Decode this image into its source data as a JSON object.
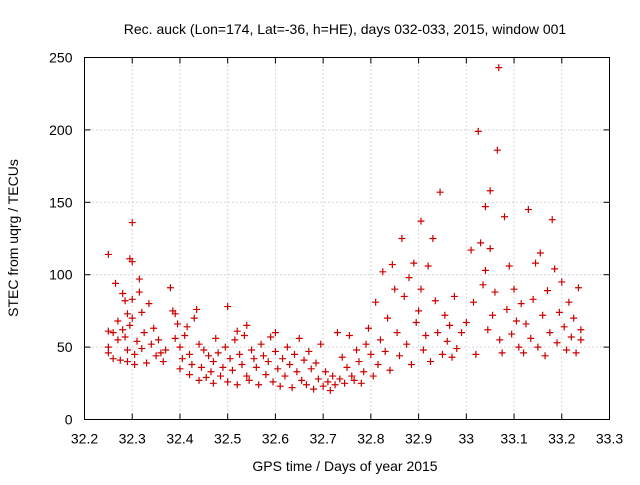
{
  "chart_data": {
    "type": "scatter",
    "title": "Rec. auck (Lon=174, Lat=-36, h=HE), days 032-033, 2015, window 001",
    "xlabel": "GPS time / Days of year 2015",
    "ylabel": "STEC from uqrg / TECUs",
    "xlim": [
      32.2,
      33.3
    ],
    "ylim": [
      0,
      250
    ],
    "x_ticks": [
      "32.2",
      "32.3",
      "32.4",
      "32.5",
      "32.6",
      "32.7",
      "32.8",
      "32.9",
      "33",
      "33.1",
      "33.2",
      "33.3"
    ],
    "y_ticks": [
      "0",
      "50",
      "100",
      "150",
      "200",
      "250"
    ],
    "grid": true,
    "marker": "+",
    "color": "#cc0000",
    "series": [
      {
        "points": [
          [
            32.25,
            114
          ],
          [
            32.25,
            61
          ],
          [
            32.25,
            50
          ],
          [
            32.25,
            46
          ],
          [
            32.26,
            60
          ],
          [
            32.26,
            42
          ],
          [
            32.265,
            94
          ],
          [
            32.27,
            68
          ],
          [
            32.27,
            55
          ],
          [
            32.275,
            41
          ],
          [
            32.28,
            87
          ],
          [
            32.28,
            62
          ],
          [
            32.285,
            82
          ],
          [
            32.285,
            57
          ],
          [
            32.29,
            73
          ],
          [
            32.29,
            48
          ],
          [
            32.29,
            40
          ],
          [
            32.295,
            111
          ],
          [
            32.295,
            65
          ],
          [
            32.3,
            109
          ],
          [
            32.3,
            136
          ],
          [
            32.3,
            83
          ],
          [
            32.3,
            70
          ],
          [
            32.305,
            45
          ],
          [
            32.305,
            38
          ],
          [
            32.31,
            54
          ],
          [
            32.315,
            97
          ],
          [
            32.315,
            88
          ],
          [
            32.32,
            74
          ],
          [
            32.32,
            49
          ],
          [
            32.325,
            60
          ],
          [
            32.33,
            39
          ],
          [
            32.335,
            80
          ],
          [
            32.34,
            52
          ],
          [
            32.345,
            63
          ],
          [
            32.35,
            44
          ],
          [
            32.355,
            55
          ],
          [
            32.36,
            46
          ],
          [
            32.365,
            40
          ],
          [
            32.37,
            48
          ],
          [
            32.38,
            91
          ],
          [
            32.385,
            75
          ],
          [
            32.39,
            73
          ],
          [
            32.39,
            56
          ],
          [
            32.395,
            66
          ],
          [
            32.4,
            35
          ],
          [
            32.4,
            50
          ],
          [
            32.405,
            42
          ],
          [
            32.41,
            58
          ],
          [
            32.415,
            64
          ],
          [
            32.42,
            31
          ],
          [
            32.42,
            45
          ],
          [
            32.425,
            38
          ],
          [
            32.43,
            70
          ],
          [
            32.435,
            76
          ],
          [
            32.44,
            52
          ],
          [
            32.44,
            27
          ],
          [
            32.445,
            36
          ],
          [
            32.45,
            48
          ],
          [
            32.455,
            29
          ],
          [
            32.46,
            44
          ],
          [
            32.465,
            33
          ],
          [
            32.47,
            25
          ],
          [
            32.47,
            40
          ],
          [
            32.475,
            56
          ],
          [
            32.48,
            46
          ],
          [
            32.485,
            30
          ],
          [
            32.49,
            36
          ],
          [
            32.495,
            50
          ],
          [
            32.5,
            78
          ],
          [
            32.5,
            26
          ],
          [
            32.505,
            42
          ],
          [
            32.51,
            34
          ],
          [
            32.515,
            55
          ],
          [
            32.52,
            61
          ],
          [
            32.52,
            24
          ],
          [
            32.525,
            45
          ],
          [
            32.53,
            38
          ],
          [
            32.535,
            58
          ],
          [
            32.54,
            65
          ],
          [
            32.54,
            30
          ],
          [
            32.545,
            27
          ],
          [
            32.55,
            48
          ],
          [
            32.555,
            42
          ],
          [
            32.56,
            36
          ],
          [
            32.565,
            24
          ],
          [
            32.57,
            52
          ],
          [
            32.575,
            44
          ],
          [
            32.58,
            31
          ],
          [
            32.585,
            40
          ],
          [
            32.59,
            57
          ],
          [
            32.595,
            26
          ],
          [
            32.6,
            60
          ],
          [
            32.6,
            47
          ],
          [
            32.605,
            35
          ],
          [
            32.61,
            23
          ],
          [
            32.615,
            42
          ],
          [
            32.62,
            30
          ],
          [
            32.625,
            50
          ],
          [
            32.63,
            38
          ],
          [
            32.635,
            22
          ],
          [
            32.64,
            45
          ],
          [
            32.645,
            33
          ],
          [
            32.65,
            56
          ],
          [
            32.655,
            27
          ],
          [
            32.66,
            41
          ],
          [
            32.665,
            24
          ],
          [
            32.67,
            47
          ],
          [
            32.675,
            35
          ],
          [
            32.68,
            21
          ],
          [
            32.685,
            39
          ],
          [
            32.69,
            28
          ],
          [
            32.695,
            52
          ],
          [
            32.7,
            23
          ],
          [
            32.705,
            33
          ],
          [
            32.71,
            26
          ],
          [
            32.715,
            20
          ],
          [
            32.72,
            30
          ],
          [
            32.725,
            24
          ],
          [
            32.73,
            60
          ],
          [
            32.735,
            28
          ],
          [
            32.74,
            43
          ],
          [
            32.745,
            25
          ],
          [
            32.75,
            36
          ],
          [
            32.755,
            58
          ],
          [
            32.76,
            30
          ],
          [
            32.765,
            27
          ],
          [
            32.77,
            48
          ],
          [
            32.775,
            40
          ],
          [
            32.78,
            25
          ],
          [
            32.785,
            33
          ],
          [
            32.79,
            52
          ],
          [
            32.795,
            63
          ],
          [
            32.8,
            45
          ],
          [
            32.805,
            30
          ],
          [
            32.81,
            81
          ],
          [
            32.815,
            38
          ],
          [
            32.82,
            55
          ],
          [
            32.825,
            102
          ],
          [
            32.83,
            47
          ],
          [
            32.835,
            70
          ],
          [
            32.84,
            34
          ],
          [
            32.845,
            107
          ],
          [
            32.85,
            90
          ],
          [
            32.855,
            60
          ],
          [
            32.86,
            44
          ],
          [
            32.865,
            125
          ],
          [
            32.87,
            85
          ],
          [
            32.875,
            52
          ],
          [
            32.88,
            98
          ],
          [
            32.885,
            38
          ],
          [
            32.89,
            108
          ],
          [
            32.895,
            67
          ],
          [
            32.9,
            75
          ],
          [
            32.905,
            137
          ],
          [
            32.905,
            90
          ],
          [
            32.91,
            48
          ],
          [
            32.915,
            58
          ],
          [
            32.92,
            106
          ],
          [
            32.925,
            40
          ],
          [
            32.93,
            125
          ],
          [
            32.935,
            82
          ],
          [
            32.94,
            60
          ],
          [
            32.945,
            157
          ],
          [
            32.95,
            45
          ],
          [
            32.955,
            72
          ],
          [
            32.96,
            54
          ],
          [
            32.965,
            65
          ],
          [
            32.97,
            43
          ],
          [
            32.975,
            85
          ],
          [
            32.98,
            49
          ],
          [
            32.99,
            60
          ],
          [
            33.0,
            67
          ],
          [
            33.01,
            117
          ],
          [
            33.015,
            81
          ],
          [
            33.02,
            45
          ],
          [
            33.025,
            199
          ],
          [
            33.03,
            122
          ],
          [
            33.035,
            93
          ],
          [
            33.04,
            147
          ],
          [
            33.04,
            103
          ],
          [
            33.045,
            62
          ],
          [
            33.05,
            158
          ],
          [
            33.05,
            118
          ],
          [
            33.055,
            72
          ],
          [
            33.06,
            88
          ],
          [
            33.065,
            186
          ],
          [
            33.068,
            243
          ],
          [
            33.07,
            55
          ],
          [
            33.075,
            46
          ],
          [
            33.08,
            140
          ],
          [
            33.085,
            76
          ],
          [
            33.09,
            106
          ],
          [
            33.095,
            59
          ],
          [
            33.1,
            90
          ],
          [
            33.105,
            68
          ],
          [
            33.11,
            50
          ],
          [
            33.115,
            80
          ],
          [
            33.12,
            46
          ],
          [
            33.125,
            66
          ],
          [
            33.13,
            145
          ],
          [
            33.135,
            56
          ],
          [
            33.14,
            83
          ],
          [
            33.145,
            108
          ],
          [
            33.15,
            50
          ],
          [
            33.155,
            115
          ],
          [
            33.16,
            72
          ],
          [
            33.165,
            44
          ],
          [
            33.17,
            89
          ],
          [
            33.175,
            60
          ],
          [
            33.18,
            138
          ],
          [
            33.185,
            104
          ],
          [
            33.19,
            53
          ],
          [
            33.195,
            74
          ],
          [
            33.2,
            95
          ],
          [
            33.205,
            64
          ],
          [
            33.21,
            48
          ],
          [
            33.215,
            81
          ],
          [
            33.22,
            57
          ],
          [
            33.225,
            70
          ],
          [
            33.23,
            46
          ],
          [
            33.235,
            91
          ],
          [
            33.24,
            55
          ],
          [
            33.24,
            62
          ]
        ]
      }
    ]
  }
}
